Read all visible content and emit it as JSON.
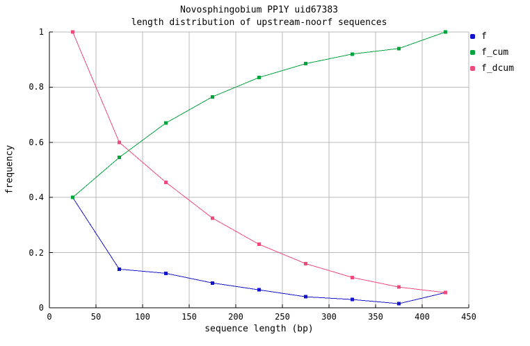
{
  "chart_data": {
    "type": "line",
    "title": "Novosphingobium PP1Y uid67383",
    "subtitle": "length distribution of upstream-noorf sequences",
    "xlabel": "sequence length (bp)",
    "ylabel": "frequency",
    "xlim": [
      0,
      450
    ],
    "ylim": [
      0,
      1
    ],
    "grid": true,
    "legend_position": "outside-top-right",
    "x_ticks": [
      0,
      50,
      100,
      150,
      200,
      250,
      300,
      350,
      400,
      450
    ],
    "x_tick_labels": [
      "0",
      "50",
      "100",
      "150",
      "200",
      "250",
      "300",
      "350",
      "400",
      "450"
    ],
    "y_ticks": [
      0,
      0.2,
      0.4,
      0.6,
      0.8,
      1
    ],
    "y_tick_labels": [
      "0",
      "0.2",
      "0.4",
      "0.6",
      "0.8",
      "1"
    ],
    "x": [
      25,
      75,
      125,
      175,
      225,
      275,
      325,
      375,
      425
    ],
    "series": [
      {
        "name": "f",
        "color": "#1414cc",
        "values": [
          0.4,
          0.14,
          0.125,
          0.09,
          0.065,
          0.04,
          0.03,
          0.015,
          0.055
        ]
      },
      {
        "name": "f_cum",
        "color": "#00a33c",
        "values": [
          0.4,
          0.545,
          0.67,
          0.765,
          0.835,
          0.885,
          0.92,
          0.94,
          1.0
        ]
      },
      {
        "name": "f_dcum",
        "color": "#f04a7d",
        "values": [
          1.0,
          0.6,
          0.455,
          0.325,
          0.23,
          0.16,
          0.11,
          0.075,
          0.055
        ]
      }
    ],
    "colors": {
      "grid": "#b9b9b9",
      "axis": "#000000",
      "text": "#000000",
      "background": "#ffffff"
    }
  }
}
